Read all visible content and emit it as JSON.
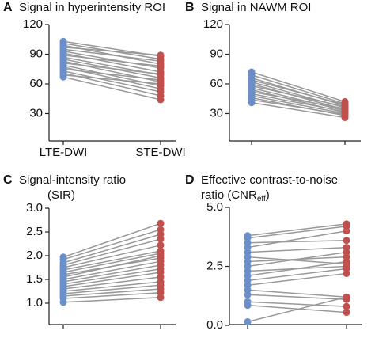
{
  "chart_data": [
    {
      "type": "paired",
      "label": "A",
      "title_lines": [
        "Signal in hyperintensity ROI"
      ],
      "categories": [
        "LTE-DWI",
        "STE-DWI"
      ],
      "colors": [
        "#6b8fc9",
        "#c0504d"
      ],
      "line_color": "#999999",
      "ylim": [
        0,
        120
      ],
      "yticks": [
        30,
        60,
        90,
        120
      ],
      "pairs": [
        [
          103,
          88
        ],
        [
          101,
          85
        ],
        [
          99,
          80
        ],
        [
          97,
          89
        ],
        [
          95,
          83
        ],
        [
          93,
          76
        ],
        [
          91,
          72
        ],
        [
          89,
          78
        ],
        [
          87,
          69
        ],
        [
          85,
          66
        ],
        [
          83,
          62
        ],
        [
          81,
          70
        ],
        [
          79,
          58
        ],
        [
          77,
          55
        ],
        [
          75,
          64
        ],
        [
          73,
          52
        ],
        [
          71,
          48
        ],
        [
          69,
          60
        ],
        [
          67,
          44
        ]
      ]
    },
    {
      "type": "paired",
      "label": "B",
      "title_lines": [
        "Signal in NAWM ROI"
      ],
      "categories": [
        null,
        null
      ],
      "colors": [
        "#6b8fc9",
        "#c0504d"
      ],
      "line_color": "#999999",
      "ylim": [
        0,
        120
      ],
      "yticks": [
        30,
        60,
        90,
        120
      ],
      "pairs": [
        [
          72,
          42
        ],
        [
          69,
          40
        ],
        [
          66,
          38
        ],
        [
          64,
          39
        ],
        [
          62,
          36
        ],
        [
          60,
          34
        ],
        [
          58,
          37
        ],
        [
          56,
          33
        ],
        [
          54,
          31
        ],
        [
          52,
          35
        ],
        [
          50,
          32
        ],
        [
          48,
          30
        ],
        [
          46,
          28
        ],
        [
          44,
          29
        ],
        [
          41,
          26
        ]
      ]
    },
    {
      "type": "paired",
      "label": "C",
      "title_lines": [
        "Signal-intensity ratio",
        "(SIR)"
      ],
      "categories": [
        null,
        null
      ],
      "colors": [
        "#6b8fc9",
        "#c0504d"
      ],
      "line_color": "#999999",
      "ylim": [
        0.55,
        3.0
      ],
      "yticks": [
        {
          "value": 1.0,
          "label": "1.0"
        },
        {
          "value": 1.5,
          "label": "1.5"
        },
        {
          "value": 2.0,
          "label": "2.0"
        },
        {
          "value": 2.5,
          "label": "2.5"
        },
        {
          "value": 3.0,
          "label": "3.0"
        }
      ],
      "pairs": [
        [
          1.97,
          2.68
        ],
        [
          1.92,
          2.55
        ],
        [
          1.85,
          2.45
        ],
        [
          1.8,
          2.35
        ],
        [
          1.75,
          2.22
        ],
        [
          1.7,
          2.1
        ],
        [
          1.65,
          2.05
        ],
        [
          1.6,
          1.95
        ],
        [
          1.55,
          2.0
        ],
        [
          1.5,
          1.88
        ],
        [
          1.45,
          1.8
        ],
        [
          1.4,
          1.72
        ],
        [
          1.35,
          1.65
        ],
        [
          1.3,
          1.55
        ],
        [
          1.25,
          1.45
        ],
        [
          1.2,
          1.38
        ],
        [
          1.15,
          1.3
        ],
        [
          1.1,
          1.22
        ],
        [
          1.02,
          1.12
        ]
      ]
    },
    {
      "type": "paired",
      "label": "D",
      "title_lines": [
        "Effective contrast-to-noise",
        "ratio (CNR"
      ],
      "title_subscript": "eff",
      "title_suffix": ")",
      "categories": [
        null,
        null
      ],
      "colors": [
        "#6b8fc9",
        "#c0504d"
      ],
      "line_color": "#999999",
      "ylim": [
        0,
        5
      ],
      "yticks": [
        {
          "value": 0,
          "label": "0.0"
        },
        {
          "value": 2.5,
          "label": "2.5"
        },
        {
          "value": 5,
          "label": "5.0"
        }
      ],
      "pairs": [
        [
          3.8,
          4.3
        ],
        [
          3.7,
          4.2
        ],
        [
          3.5,
          3.6
        ],
        [
          3.3,
          4.0
        ],
        [
          3.1,
          3.3
        ],
        [
          2.9,
          2.6
        ],
        [
          2.7,
          2.9
        ],
        [
          2.5,
          3.1
        ],
        [
          2.3,
          2.5
        ],
        [
          2.1,
          2.7
        ],
        [
          1.9,
          2.4
        ],
        [
          1.7,
          2.2
        ],
        [
          1.5,
          1.2
        ],
        [
          1.3,
          1.1
        ],
        [
          1.0,
          0.8
        ],
        [
          0.85,
          0.55
        ],
        [
          0.15,
          1.2
        ]
      ]
    }
  ]
}
